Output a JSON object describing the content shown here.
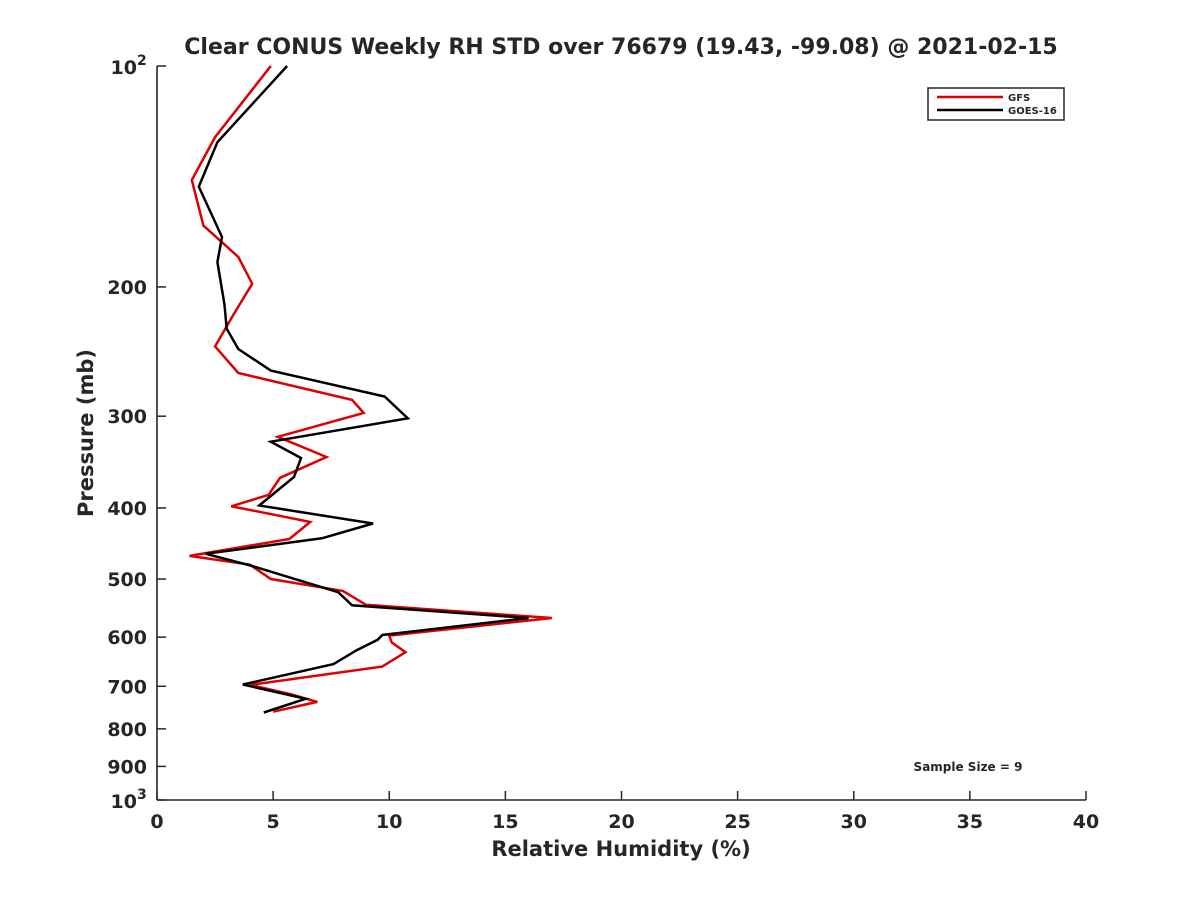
{
  "chart_data": {
    "type": "line",
    "title": "Clear CONUS Weekly RH STD over 76679 (19.43, -99.08) @ 2021-02-15",
    "xlabel": "Relative Humidity (%)",
    "ylabel": "Pressure (mb)",
    "xlim": [
      0,
      40
    ],
    "ylim": [
      100,
      1000
    ],
    "y_scale": "log",
    "y_reversed": true,
    "x_ticks": [
      0,
      5,
      10,
      15,
      20,
      25,
      30,
      35,
      40
    ],
    "x_tick_labels": [
      "0",
      "5",
      "10",
      "15",
      "20",
      "25",
      "30",
      "35",
      "40"
    ],
    "y_ticks": [
      100,
      200,
      300,
      400,
      500,
      600,
      700,
      800,
      900,
      1000
    ],
    "y_tick_labels": [
      {
        "base": "10",
        "exp": "2"
      },
      {
        "base": "200",
        "exp": ""
      },
      {
        "base": "300",
        "exp": ""
      },
      {
        "base": "400",
        "exp": ""
      },
      {
        "base": "500",
        "exp": ""
      },
      {
        "base": "600",
        "exp": ""
      },
      {
        "base": "700",
        "exp": ""
      },
      {
        "base": "800",
        "exp": ""
      },
      {
        "base": "900",
        "exp": ""
      },
      {
        "base": "10",
        "exp": "3"
      }
    ],
    "grid": false,
    "legend_position": "top-right",
    "annotation": "Sample Size = 9",
    "series": [
      {
        "name": "GFS",
        "color": "#dd0000",
        "points": [
          [
            4.9,
            100
          ],
          [
            2.5,
            125
          ],
          [
            1.5,
            143
          ],
          [
            2.0,
            165
          ],
          [
            3.5,
            182
          ],
          [
            4.1,
            198
          ],
          [
            3.3,
            218
          ],
          [
            2.5,
            241
          ],
          [
            3.5,
            262
          ],
          [
            8.4,
            285
          ],
          [
            8.9,
            297
          ],
          [
            5.2,
            320
          ],
          [
            7.3,
            341
          ],
          [
            5.3,
            364
          ],
          [
            4.8,
            384
          ],
          [
            3.2,
            398
          ],
          [
            6.6,
            418
          ],
          [
            5.7,
            441
          ],
          [
            1.4,
            465
          ],
          [
            4.0,
            478
          ],
          [
            4.9,
            500
          ],
          [
            8.0,
            519
          ],
          [
            9.0,
            542
          ],
          [
            17.0,
            565
          ],
          [
            10.0,
            597
          ],
          [
            10.1,
            610
          ],
          [
            10.7,
            629
          ],
          [
            9.7,
            658
          ],
          [
            4.0,
            697
          ],
          [
            5.8,
            718
          ],
          [
            6.9,
            735
          ],
          [
            5.0,
            758
          ]
        ]
      },
      {
        "name": "GOES-16",
        "color": "#000000",
        "points": [
          [
            5.6,
            100
          ],
          [
            2.6,
            127
          ],
          [
            1.8,
            146
          ],
          [
            2.8,
            171
          ],
          [
            2.6,
            185
          ],
          [
            2.9,
            211
          ],
          [
            3.0,
            228
          ],
          [
            3.5,
            243
          ],
          [
            4.9,
            260
          ],
          [
            9.8,
            282
          ],
          [
            10.8,
            302
          ],
          [
            4.9,
            325
          ],
          [
            6.2,
            342
          ],
          [
            5.9,
            363
          ],
          [
            4.4,
            397
          ],
          [
            9.3,
            420
          ],
          [
            7.1,
            440
          ],
          [
            2.1,
            462
          ],
          [
            4.1,
            480
          ],
          [
            7.8,
            521
          ],
          [
            8.4,
            543
          ],
          [
            16.0,
            565
          ],
          [
            9.7,
            596
          ],
          [
            9.5,
            605
          ],
          [
            8.6,
            625
          ],
          [
            7.6,
            653
          ],
          [
            3.7,
            696
          ],
          [
            6.4,
            728
          ],
          [
            4.6,
            760
          ]
        ]
      }
    ]
  }
}
